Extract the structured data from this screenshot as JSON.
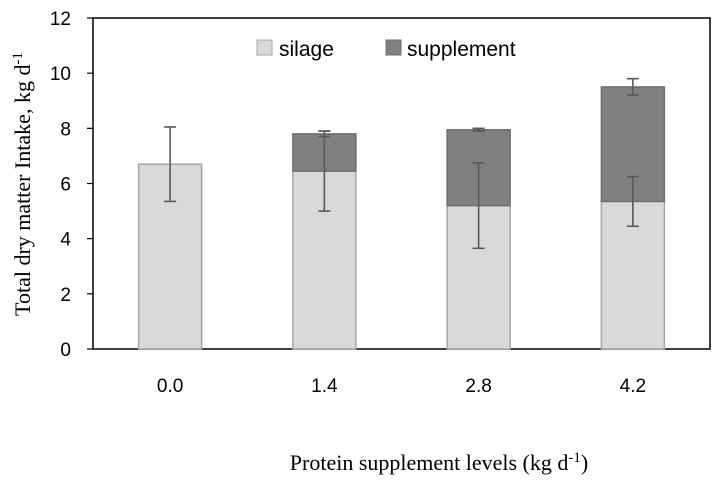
{
  "chart_data": {
    "type": "bar",
    "stacked": true,
    "categories": [
      "0.0",
      "1.4",
      "2.8",
      "4.2"
    ],
    "series": [
      {
        "name": "silage",
        "color": "#d9d9d9",
        "values": [
          6.7,
          6.45,
          5.2,
          5.35
        ],
        "error": [
          1.35,
          1.45,
          1.55,
          0.9
        ]
      },
      {
        "name": "supplement",
        "color": "#808080",
        "values": [
          0,
          1.35,
          2.75,
          4.15
        ],
        "error": [
          0,
          0.1,
          0.05,
          0.3
        ]
      }
    ],
    "yticks": [
      "0",
      "2",
      "4",
      "6",
      "8",
      "10",
      "12"
    ],
    "ylim": [
      0,
      12
    ],
    "ylabel_main": "Total dry matter Intake, kg d",
    "ylabel_sup": "-1",
    "xlabel_main": "Protein supplement levels (kg d",
    "xlabel_sup": "-1",
    "xlabel_close": ")",
    "legend": [
      "silage",
      "supplement"
    ],
    "legend_position": "top-center",
    "grid": false
  }
}
